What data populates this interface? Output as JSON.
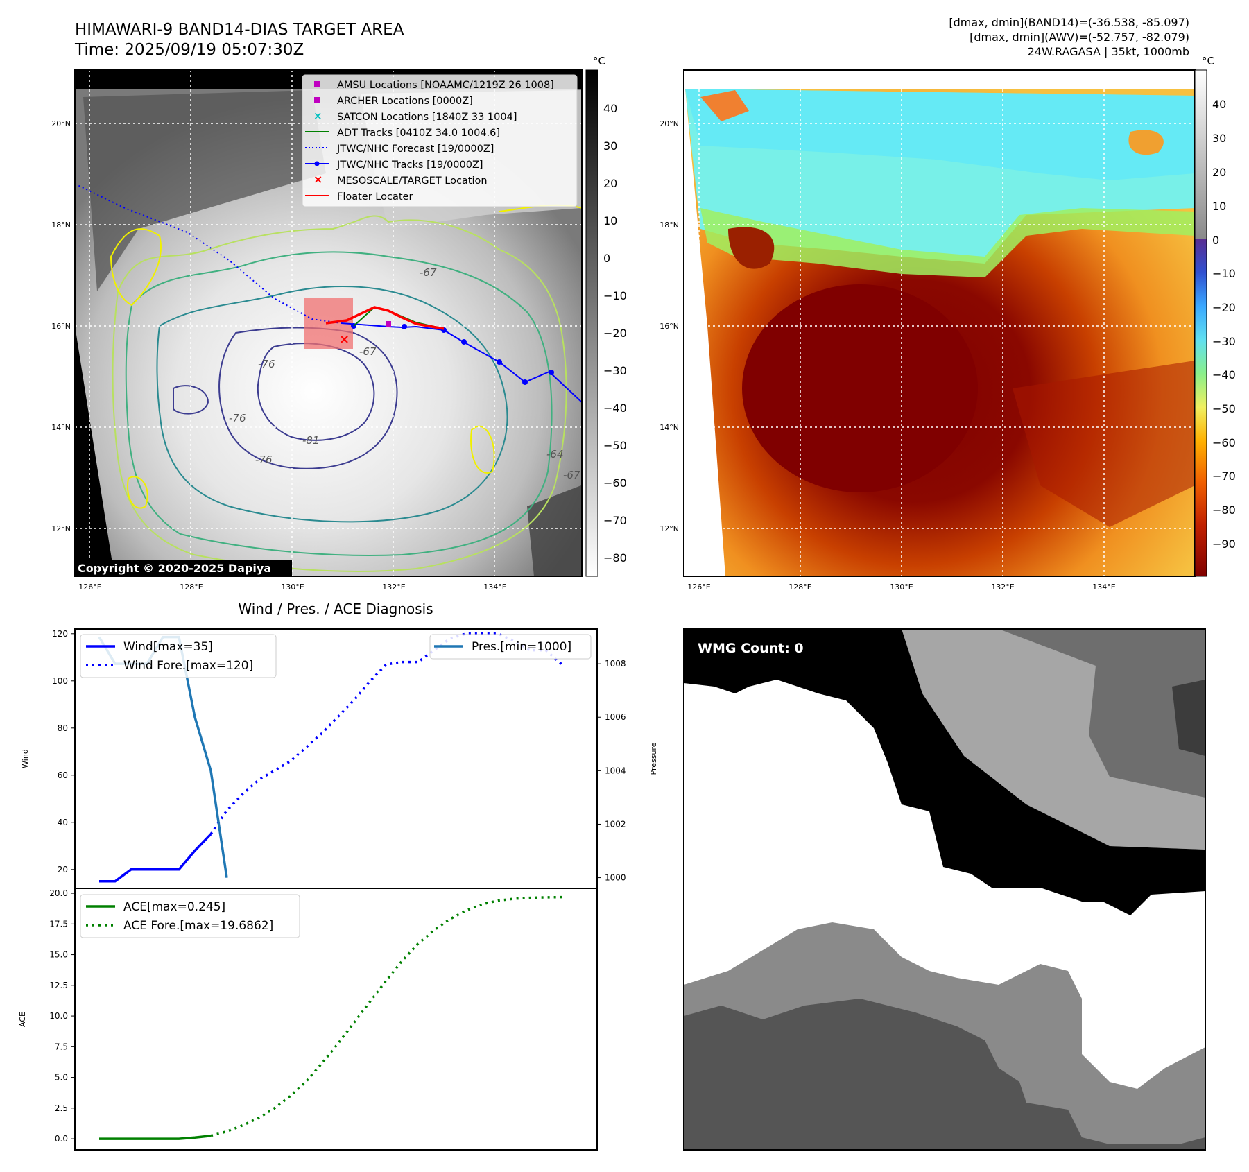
{
  "header": {
    "title": "HIMAWARI-9 BAND14-DIAS TARGET AREA",
    "time": "Time: 2025/09/19 05:07:30Z",
    "dmax_band14": "[dmax, dmin](BAND14)=(-36.538, -85.097)",
    "dmax_awv": "[dmax, dmin](AWV)=(-52.757, -82.079)",
    "storm": "24W.RAGASA | 35kt, 1000mb"
  },
  "map": {
    "lat_labels": [
      "20°N",
      "18°N",
      "16°N",
      "14°N",
      "12°N"
    ],
    "lon_labels": [
      "126°E",
      "128°E",
      "130°E",
      "132°E",
      "134°E"
    ],
    "copyright": "Copyright © 2020-2025 Dapiya",
    "contour_labels": [
      "-67",
      "-76",
      "-81",
      "-76",
      "-76",
      "-67",
      "-64",
      "-67"
    ],
    "legend": [
      {
        "label": "AMSU Locations [NOAAMC/1219Z 26 1008]",
        "color": "#c000c0",
        "marker": "square"
      },
      {
        "label": "ARCHER Locations [0000Z]",
        "color": "#c000c0",
        "marker": "square"
      },
      {
        "label": "SATCON Locations [1840Z 33 1004]",
        "color": "#00bfbf",
        "marker": "x"
      },
      {
        "label": "ADT Tracks [0410Z 34.0 1004.6]",
        "color": "#008000",
        "marker": "line"
      },
      {
        "label": "JTWC/NHC Forecast [19/0000Z]",
        "color": "#0000ff",
        "marker": "dotted"
      },
      {
        "label": "JTWC/NHC Tracks [19/0000Z]",
        "color": "#0000ff",
        "marker": "line-dot"
      },
      {
        "label": "MESOSCALE/TARGET Location",
        "color": "#ff0000",
        "marker": "x"
      },
      {
        "label": "Floater Locater",
        "color": "#ff0000",
        "marker": "line"
      }
    ],
    "gray_cbar": {
      "unit": "°C",
      "ticks": [
        "40",
        "30",
        "20",
        "10",
        "0",
        "−10",
        "−20",
        "−30",
        "−40",
        "−50",
        "−60",
        "−70",
        "−80"
      ]
    },
    "color_cbar": {
      "unit": "°C",
      "ticks": [
        "40",
        "30",
        "20",
        "10",
        "0",
        "−10",
        "−20",
        "−30",
        "−40",
        "−50",
        "−60",
        "−70",
        "−80",
        "−90"
      ]
    }
  },
  "diag": {
    "title": "Wind / Pres. / ACE Diagnosis",
    "wind_ylabel": "Wind",
    "pres_ylabel": "Pressure",
    "ace_ylabel": "ACE",
    "wmg_label": "WMG Count: 0"
  },
  "chart_data": [
    {
      "type": "line",
      "title": "Wind / Pres. / ACE Diagnosis",
      "ylabel": "Wind",
      "ylim": [
        12,
        122
      ],
      "yticks": [
        "120",
        "100",
        "80",
        "60",
        "40",
        "20"
      ],
      "x": [
        0,
        1,
        2,
        3,
        4,
        5,
        6,
        7,
        8,
        9,
        10,
        11,
        12,
        13,
        14,
        15,
        16,
        17,
        18,
        19,
        20,
        21,
        22,
        23,
        24,
        25,
        26,
        27,
        28,
        29
      ],
      "series": [
        {
          "name": "Wind[max=35]",
          "color": "#0000ff",
          "style": "solid",
          "x": [
            0,
            1,
            2,
            3,
            4,
            5,
            6,
            7
          ],
          "values": [
            15,
            15,
            20,
            20,
            20,
            20,
            28,
            35
          ]
        },
        {
          "name": "Wind Fore.[max=120]",
          "color": "#0000ff",
          "style": "dotted",
          "x": [
            7,
            8,
            9,
            10,
            11,
            12,
            13,
            14,
            15,
            16,
            17,
            18,
            19,
            20,
            21,
            22,
            23,
            24,
            25,
            26,
            27,
            28,
            29
          ],
          "values": [
            35,
            45,
            52,
            58,
            62,
            66,
            72,
            78,
            85,
            92,
            100,
            107,
            108,
            108,
            113,
            118,
            120,
            120,
            120,
            117,
            113,
            113,
            107
          ]
        }
      ],
      "secondary": {
        "ylabel": "Pressure",
        "ylim": [
          999.6,
          1009.3
        ],
        "yticks": [
          "1008",
          "1006",
          "1004",
          "1002",
          "1000"
        ],
        "series": [
          {
            "name": "Pres.[min=1000]",
            "color": "#1f77b4",
            "style": "solid",
            "x": [
              0,
              1,
              2,
              3,
              4,
              5,
              6,
              7,
              8
            ],
            "values": [
              1009.0,
              1008.0,
              1008.0,
              1008.0,
              1009.0,
              1009.0,
              1006.0,
              1004.0,
              1000.0
            ]
          }
        ]
      }
    },
    {
      "type": "line",
      "ylabel": "ACE",
      "ylim": [
        -0.9,
        20.4
      ],
      "yticks": [
        "20.0",
        "17.5",
        "15.0",
        "12.5",
        "10.0",
        "7.5",
        "5.0",
        "2.5",
        "0.0"
      ],
      "series": [
        {
          "name": "ACE[max=0.245]",
          "color": "#008000",
          "style": "solid",
          "x": [
            0,
            1,
            2,
            3,
            4,
            5,
            6,
            7
          ],
          "values": [
            0,
            0,
            0,
            0,
            0,
            0,
            0.1,
            0.245
          ]
        },
        {
          "name": "ACE Fore.[max=19.6862]",
          "color": "#008000",
          "style": "dotted",
          "x": [
            7,
            8,
            9,
            10,
            11,
            12,
            13,
            14,
            15,
            16,
            17,
            18,
            19,
            20,
            21,
            22,
            23,
            24,
            25,
            26,
            27,
            28,
            29
          ],
          "values": [
            0.245,
            0.6,
            1.1,
            1.7,
            2.5,
            3.5,
            4.7,
            6.2,
            7.8,
            9.5,
            11.2,
            12.9,
            14.5,
            15.9,
            17.0,
            17.9,
            18.6,
            19.1,
            19.4,
            19.55,
            19.63,
            19.67,
            19.6862
          ]
        }
      ]
    }
  ]
}
